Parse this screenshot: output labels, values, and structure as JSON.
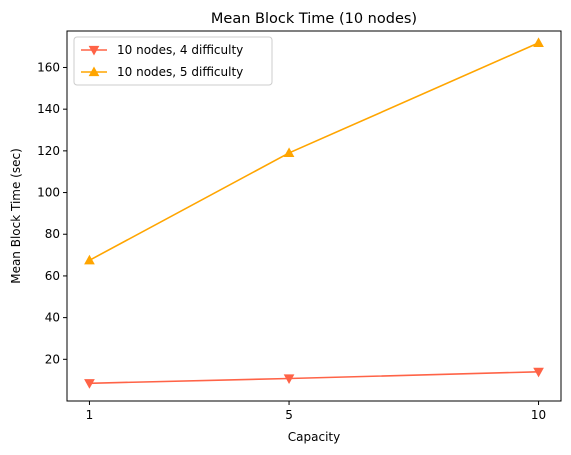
{
  "chart_data": {
    "type": "line",
    "title": "Mean Block Time (10 nodes)",
    "xlabel": "Capacity",
    "ylabel": "Mean Block Time (sec)",
    "x": [
      1,
      5,
      10
    ],
    "xticks": [
      "1",
      "5",
      "10"
    ],
    "yticks": [
      20,
      40,
      60,
      80,
      100,
      120,
      140,
      160
    ],
    "xlim": [
      0.55,
      10.45
    ],
    "ylim": [
      0,
      177.5
    ],
    "grid": false,
    "legend_position": "top-left",
    "series": [
      {
        "name": "10 nodes, 4 difficulty",
        "values": [
          8.5,
          10.8,
          14.0
        ],
        "color": "#ff6347",
        "marker": "triangle-down"
      },
      {
        "name": "10 nodes, 5 difficulty",
        "values": [
          67.5,
          119.0,
          171.8
        ],
        "color": "#ffa500",
        "marker": "triangle-up"
      }
    ]
  }
}
